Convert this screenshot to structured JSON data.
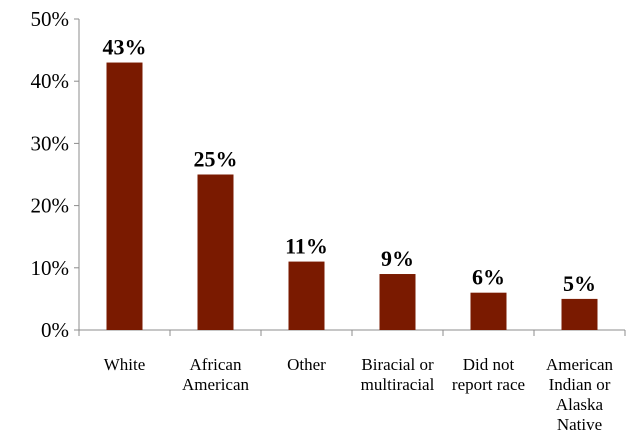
{
  "chart_data": {
    "type": "bar",
    "categories": [
      [
        "White"
      ],
      [
        "African",
        "American"
      ],
      [
        "Other"
      ],
      [
        "Biracial or",
        "multiracial"
      ],
      [
        "Did not",
        "report race"
      ],
      [
        "American",
        "Indian or",
        "Alaska",
        "Native"
      ]
    ],
    "values": [
      43,
      25,
      11,
      9,
      6,
      5
    ],
    "data_labels": [
      "43%",
      "25%",
      "11%",
      "9%",
      "6%",
      "5%"
    ],
    "ylim": [
      0,
      50
    ],
    "yticks": [
      0,
      10,
      20,
      30,
      40,
      50
    ],
    "ytick_labels": [
      "0%",
      "10%",
      "20%",
      "30%",
      "40%",
      "50%"
    ],
    "title": "",
    "xlabel": "",
    "ylabel": "",
    "bar_color": "#7a1a00",
    "grid": false,
    "legend": "none"
  }
}
